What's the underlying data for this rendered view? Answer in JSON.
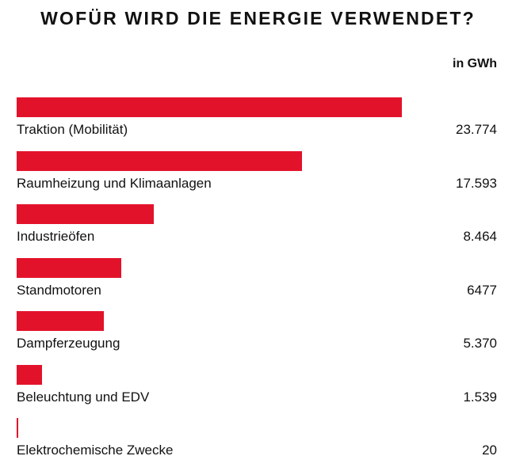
{
  "chart_data": {
    "type": "bar",
    "orientation": "horizontal",
    "title": "WOFÜR WIRD DIE ENERGIE VERWENDET?",
    "unit_label": "in GWh",
    "bar_color": "#e3122b",
    "categories": [
      "Traktion (Mobilität)",
      "Raumheizung und Klimaanlagen",
      "Industrieöfen",
      "Standmotoren",
      "Dampferzeugung",
      "Beleuchtung und EDV",
      "Elektrochemische Zwecke"
    ],
    "values": [
      23774,
      17593,
      8464,
      6477,
      5370,
      1539,
      20
    ],
    "value_labels": [
      "23.774",
      "17.593",
      "8.464",
      "6477",
      "5.370",
      "1.539",
      "20"
    ]
  }
}
